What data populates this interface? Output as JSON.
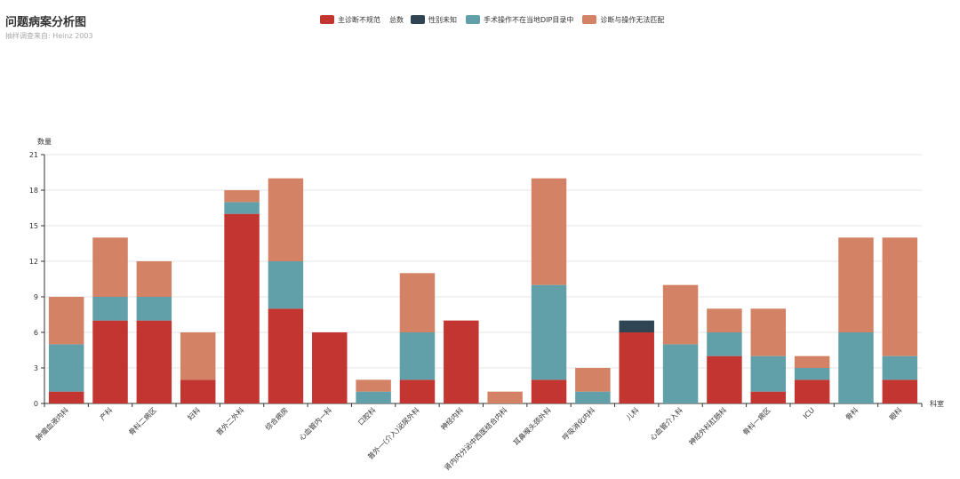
{
  "chart_data": {
    "type": "bar",
    "stacked": true,
    "title": "问题病案分析图",
    "subtitle": "抽样调查来自: Heinz  2003",
    "ylabel": "数量",
    "xlabel": "科室",
    "ylim": [
      0,
      21
    ],
    "yticks": [
      0,
      3,
      6,
      9,
      12,
      15,
      18,
      21
    ],
    "legend_extra": "总数",
    "categories": [
      "肿瘤血液内科",
      "产科",
      "骨科二病区",
      "妇科",
      "普外二外科",
      "综合病房",
      "心血管内一科",
      "口腔科",
      "普外一(介入)泌尿外科",
      "神经内科",
      "肾内内分泌中西医结合内科",
      "耳鼻喉头颈外科",
      "呼吸消化内科",
      "儿科",
      "心血管介入科",
      "神经外科肛肠科",
      "骨科一病区",
      "ICU",
      "骨科",
      "眼科"
    ],
    "series": [
      {
        "name": "主诊断不规范",
        "color": "#c23531",
        "values": [
          1,
          7,
          7,
          2,
          16,
          8,
          6,
          0,
          2,
          7,
          0,
          2,
          0,
          6,
          0,
          4,
          1,
          2,
          0,
          2
        ]
      },
      {
        "name": "性别未知",
        "color": "#2f4554",
        "values": [
          0,
          0,
          0,
          0,
          0,
          0,
          0,
          0,
          0,
          0,
          0,
          0,
          0,
          1,
          0,
          0,
          0,
          0,
          0,
          0
        ]
      },
      {
        "name": "手术操作不在当地DIP目录中",
        "color": "#61a0a8",
        "values": [
          4,
          2,
          2,
          0,
          1,
          4,
          0,
          1,
          4,
          0,
          0,
          8,
          1,
          0,
          5,
          2,
          3,
          1,
          6,
          2
        ]
      },
      {
        "name": "诊断与操作无法匹配",
        "color": "#d48265",
        "values": [
          4,
          5,
          3,
          4,
          1,
          7,
          0,
          1,
          5,
          0,
          1,
          9,
          2,
          0,
          5,
          2,
          4,
          1,
          8,
          10
        ]
      }
    ]
  }
}
